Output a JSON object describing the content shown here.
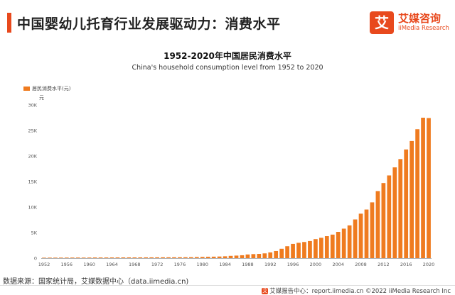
{
  "header": {
    "title": "中国婴幼儿托育行业发展驱动力：消费水平",
    "logo_cn": "艾媒咨询",
    "logo_en": "iiMedia Research",
    "logo_badge": "艾"
  },
  "colors": {
    "accent": "#e8491d",
    "bar": "#ef7b1f"
  },
  "chart_data": {
    "type": "bar",
    "title": "1952-2020年中国居民消费水平",
    "subtitle": "China's household consumption level from 1952 to 2020",
    "legend": "居民消费水平(元)",
    "unit_label": "元",
    "ylim": [
      0,
      30000
    ],
    "y_ticks": [
      {
        "value": 0,
        "label": "0"
      },
      {
        "value": 5000,
        "label": "5K"
      },
      {
        "value": 10000,
        "label": "10K"
      },
      {
        "value": 15000,
        "label": "15K"
      },
      {
        "value": 20000,
        "label": "20K"
      },
      {
        "value": 25000,
        "label": "25K"
      },
      {
        "value": 30000,
        "label": "30K"
      }
    ],
    "x_tick_labels": [
      "1952",
      "1956",
      "1960",
      "1964",
      "1968",
      "1972",
      "1976",
      "1980",
      "1984",
      "1988",
      "1992",
      "1996",
      "2000",
      "2004",
      "2008",
      "2012",
      "2016",
      "2020"
    ],
    "categories": [
      "1952",
      "1953",
      "1954",
      "1955",
      "1956",
      "1957",
      "1958",
      "1959",
      "1960",
      "1961",
      "1962",
      "1963",
      "1964",
      "1965",
      "1966",
      "1967",
      "1968",
      "1969",
      "1970",
      "1971",
      "1972",
      "1973",
      "1974",
      "1975",
      "1976",
      "1977",
      "1978",
      "1979",
      "1980",
      "1981",
      "1982",
      "1983",
      "1984",
      "1985",
      "1986",
      "1987",
      "1988",
      "1989",
      "1990",
      "1991",
      "1992",
      "1993",
      "1994",
      "1995",
      "1996",
      "1997",
      "1998",
      "1999",
      "2000",
      "2001",
      "2002",
      "2003",
      "2004",
      "2005",
      "2006",
      "2007",
      "2008",
      "2009",
      "2010",
      "2011",
      "2012",
      "2013",
      "2014",
      "2015",
      "2016",
      "2017",
      "2018",
      "2019",
      "2020"
    ],
    "values": [
      80,
      91,
      94,
      99,
      104,
      108,
      111,
      104,
      111,
      125,
      124,
      125,
      129,
      133,
      139,
      143,
      139,
      142,
      147,
      150,
      155,
      162,
      163,
      167,
      171,
      175,
      184,
      208,
      238,
      264,
      288,
      316,
      361,
      446,
      497,
      565,
      714,
      788,
      831,
      932,
      1116,
      1393,
      1833,
      2330,
      2789,
      3002,
      3159,
      3346,
      3721,
      3987,
      4301,
      4606,
      5138,
      5771,
      6416,
      7572,
      8707,
      9514,
      10919,
      13134,
      14699,
      16190,
      17778,
      19397,
      21285,
      22935,
      25245,
      27504,
      27438
    ],
    "grid": false,
    "legend_position": "top-left"
  },
  "footer": {
    "source": "数据来源：国家统计局，艾媒数据中心（data.iimedia.cn)",
    "mini_logo": "艾",
    "right_text": "艾媒报告中心：report.iimedia.cn  ©2022  iiMedia Research  Inc"
  }
}
